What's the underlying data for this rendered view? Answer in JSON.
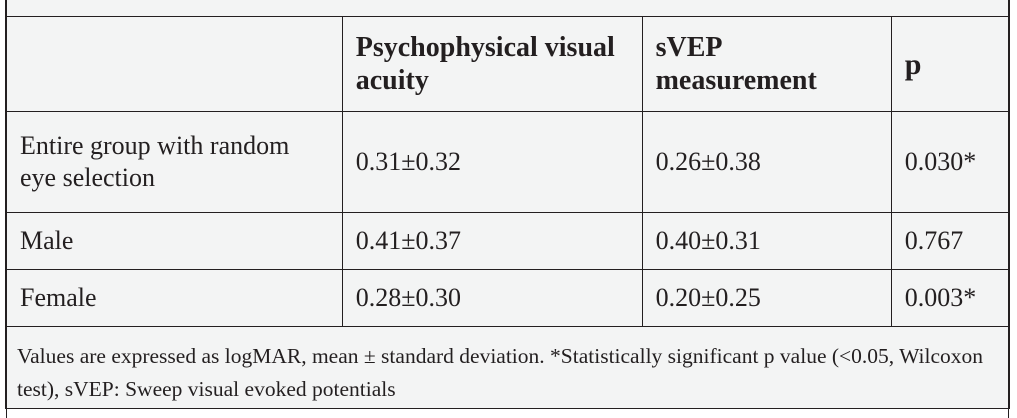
{
  "table": {
    "headers": [
      "",
      "Psychophysical visual acuity",
      "sVEP measurement",
      "p"
    ],
    "rows": [
      {
        "label": "Entire group with random eye selection",
        "psychophysical": "0.31±0.32",
        "svep": "0.26±0.38",
        "p": "0.030*"
      },
      {
        "label": "Male",
        "psychophysical": "0.41±0.37",
        "svep": "0.40±0.31",
        "p": "0.767"
      },
      {
        "label": "Female",
        "psychophysical": "0.28±0.30",
        "svep": "0.20±0.25",
        "p": "0.003*"
      }
    ],
    "footnote": "Values are expressed as logMAR, mean ± standard deviation. *Statistically significant p value (<0.05, Wilcoxon test), sVEP: Sweep visual evoked potentials"
  }
}
